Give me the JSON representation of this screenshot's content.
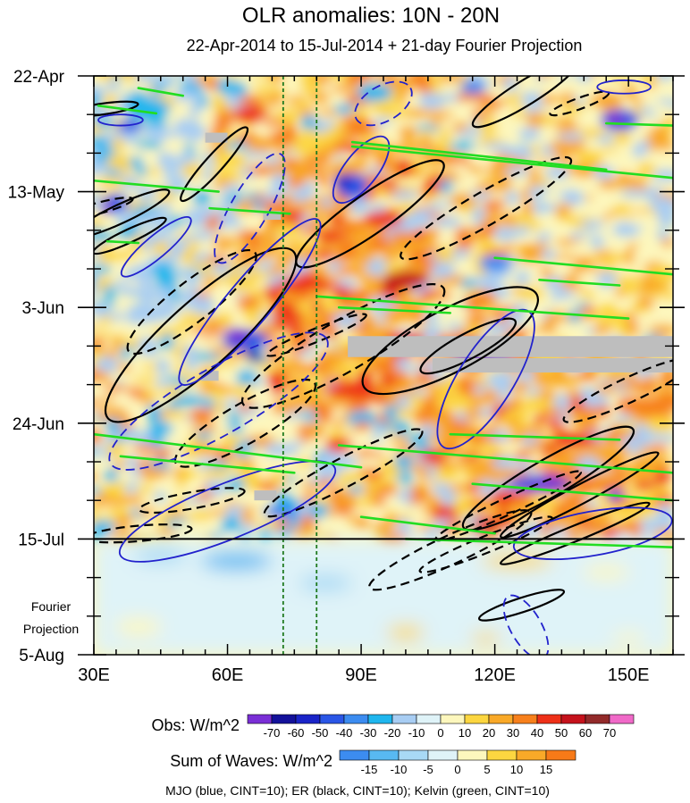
{
  "chart_data": {
    "type": "heatmap",
    "title": "OLR anomalies: 10N - 20N",
    "subtitle": "22-Apr-2014 to 15-Jul-2014 + 21-day Fourier Projection",
    "x_axis": {
      "range": [
        30,
        160
      ],
      "ticks": [
        30,
        60,
        90,
        120,
        150
      ],
      "tick_labels": [
        "30E",
        "60E",
        "90E",
        "120E",
        "150E"
      ]
    },
    "y_axis": {
      "ticks": [
        {
          "label": "22-Apr",
          "day": 0
        },
        {
          "label": "13-May",
          "day": 21
        },
        {
          "label": "3-Jun",
          "day": 42
        },
        {
          "label": "24-Jun",
          "day": 63
        },
        {
          "label": "15-Jul",
          "day": 84
        },
        {
          "label": "5-Aug",
          "day": 105
        }
      ],
      "range_days": [
        0,
        105
      ],
      "projection_start_day": 84,
      "projection_label_1": "Fourier",
      "projection_label_2": "Projection"
    },
    "reference_longitudes": [
      72.5,
      80
    ],
    "obs_colorbar": {
      "label": "Obs: W/m^2",
      "levels": [
        "-70",
        "-60",
        "-50",
        "-40",
        "-30",
        "-20",
        "-10",
        "0",
        "10",
        "20",
        "30",
        "40",
        "50",
        "60",
        "70"
      ],
      "colors": [
        "#7a2fd6",
        "#13119a",
        "#1a24c8",
        "#2a56e6",
        "#3c8cf0",
        "#1fb6ee",
        "#a8cdf3",
        "#dff3f8",
        "#fdf7bd",
        "#fcd640",
        "#f9a928",
        "#f7801c",
        "#ee3018",
        "#c5121c",
        "#922a2a",
        "#f069c8"
      ]
    },
    "waves_colorbar": {
      "label": "Sum of Waves: W/m^2",
      "levels": [
        "-15",
        "-10",
        "-5",
        "0",
        "5",
        "10",
        "15"
      ],
      "colors": [
        "#3c8cf0",
        "#58b9f1",
        "#a8d9f5",
        "#dff3f8",
        "#fdf7bd",
        "#fcd640",
        "#f9a928",
        "#f77a18"
      ]
    },
    "legend_text": "MJO (blue, CINT=10); ER (black, CINT=10); Kelvin (green, CINT=10)",
    "colors": {
      "mjo": "#2222cc",
      "er": "#000000",
      "kelvin": "#22dd22",
      "missing": "#bebebe",
      "reference_line": "#1f7a1f"
    }
  }
}
